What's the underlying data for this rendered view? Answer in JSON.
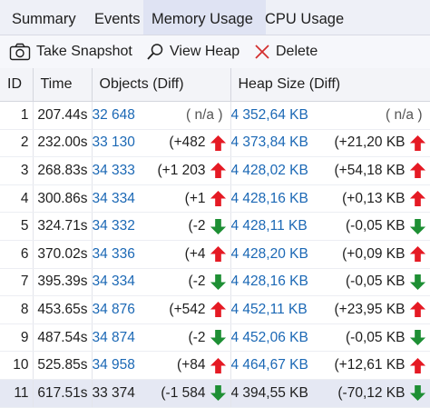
{
  "tabs": [
    {
      "label": "Summary"
    },
    {
      "label": "Events"
    },
    {
      "label": "Memory Usage",
      "active": true
    },
    {
      "label": "CPU Usage"
    }
  ],
  "toolbar": {
    "take_snapshot": "Take Snapshot",
    "view_heap": "View Heap",
    "delete": "Delete"
  },
  "columns": {
    "id": "ID",
    "time": "Time",
    "objects": "Objects (Diff)",
    "heap": "Heap Size (Diff)"
  },
  "colors": {
    "up": "#e51a24",
    "down": "#1e8f34",
    "link": "#1b68b5"
  },
  "rows": [
    {
      "id": "1",
      "time": "207.44s",
      "objects": "32 648",
      "objects_diff": "( n/a )",
      "objects_dir": "none",
      "heap": "4 352,64 KB",
      "heap_diff": "( n/a )",
      "heap_dir": "none"
    },
    {
      "id": "2",
      "time": "232.00s",
      "objects": "33 130",
      "objects_diff": "(+482",
      "objects_dir": "up",
      "heap": "4 373,84 KB",
      "heap_diff": "(+21,20 KB",
      "heap_dir": "up"
    },
    {
      "id": "3",
      "time": "268.83s",
      "objects": "34 333",
      "objects_diff": "(+1 203",
      "objects_dir": "up",
      "heap": "4 428,02 KB",
      "heap_diff": "(+54,18 KB",
      "heap_dir": "up"
    },
    {
      "id": "4",
      "time": "300.86s",
      "objects": "34 334",
      "objects_diff": "(+1",
      "objects_dir": "up",
      "heap": "4 428,16 KB",
      "heap_diff": "(+0,13 KB",
      "heap_dir": "up"
    },
    {
      "id": "5",
      "time": "324.71s",
      "objects": "34 332",
      "objects_diff": "(-2",
      "objects_dir": "down",
      "heap": "4 428,11 KB",
      "heap_diff": "(-0,05 KB",
      "heap_dir": "down"
    },
    {
      "id": "6",
      "time": "370.02s",
      "objects": "34 336",
      "objects_diff": "(+4",
      "objects_dir": "up",
      "heap": "4 428,20 KB",
      "heap_diff": "(+0,09 KB",
      "heap_dir": "up"
    },
    {
      "id": "7",
      "time": "395.39s",
      "objects": "34 334",
      "objects_diff": "(-2",
      "objects_dir": "down",
      "heap": "4 428,16 KB",
      "heap_diff": "(-0,05 KB",
      "heap_dir": "down"
    },
    {
      "id": "8",
      "time": "453.65s",
      "objects": "34 876",
      "objects_diff": "(+542",
      "objects_dir": "up",
      "heap": "4 452,11 KB",
      "heap_diff": "(+23,95 KB",
      "heap_dir": "up"
    },
    {
      "id": "9",
      "time": "487.54s",
      "objects": "34 874",
      "objects_diff": "(-2",
      "objects_dir": "down",
      "heap": "4 452,06 KB",
      "heap_diff": "(-0,05 KB",
      "heap_dir": "down"
    },
    {
      "id": "10",
      "time": "525.85s",
      "objects": "34 958",
      "objects_diff": "(+84",
      "objects_dir": "up",
      "heap": "4 464,67 KB",
      "heap_diff": "(+12,61 KB",
      "heap_dir": "up"
    },
    {
      "id": "11",
      "time": "617.51s",
      "objects": "33 374",
      "objects_diff": "(-1 584",
      "objects_dir": "down",
      "heap": "4 394,55 KB",
      "heap_diff": "(-70,12 KB",
      "heap_dir": "down",
      "selected": true
    }
  ]
}
